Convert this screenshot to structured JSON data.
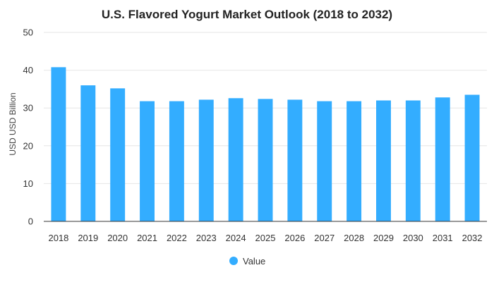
{
  "chart_data": {
    "type": "bar",
    "title": "U.S. Flavored Yogurt Market Outlook (2018 to 2032)",
    "xlabel": "",
    "ylabel": "USD USD Billion",
    "categories": [
      "2018",
      "2019",
      "2020",
      "2021",
      "2022",
      "2023",
      "2024",
      "2025",
      "2026",
      "2027",
      "2028",
      "2029",
      "2030",
      "2031",
      "2032"
    ],
    "series": [
      {
        "name": "Value",
        "color": "#33adff",
        "values": [
          40.8,
          36.0,
          35.2,
          31.8,
          31.8,
          32.2,
          32.6,
          32.4,
          32.2,
          31.8,
          31.8,
          32.0,
          32.0,
          32.8,
          33.5
        ]
      }
    ],
    "ylim": [
      0,
      50
    ],
    "yticks": [
      "0",
      "10",
      "20",
      "30",
      "40",
      "50"
    ],
    "grid": true,
    "legend_position": "bottom-center"
  }
}
